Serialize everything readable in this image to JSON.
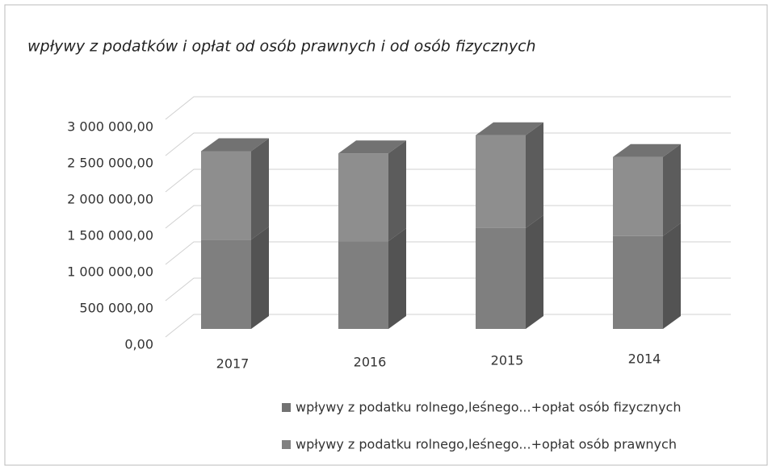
{
  "chart_data": {
    "type": "bar3d_stacked",
    "title": "wpływy z podatków i opłat od osób prawnych i od osób fizycznych",
    "categories": [
      "2017",
      "2016",
      "2015",
      "2014"
    ],
    "series": [
      {
        "name": "wpływy z podatku rolnego,leśnego...+opłat osób fizycznych",
        "color": "#7f7f7f",
        "values": [
          1230000,
          1210000,
          1390000,
          1280000
        ]
      },
      {
        "name": "wpływy z podatku rolnego,leśnego...+opłat osób prawnych",
        "color": "#8e8e8e",
        "values": [
          1220000,
          1210000,
          1280000,
          1090000
        ]
      }
    ],
    "ylim": [
      0,
      3000000
    ],
    "yticks": [
      {
        "value": 0,
        "label": "0,00"
      },
      {
        "value": 500000,
        "label": "500 000,00"
      },
      {
        "value": 1000000,
        "label": "1 000 000,00"
      },
      {
        "value": 1500000,
        "label": "1 500 000,00"
      },
      {
        "value": 2000000,
        "label": "2 000 000,00"
      },
      {
        "value": 2500000,
        "label": "2 500 000,00"
      },
      {
        "value": 3000000,
        "label": "3 000 000,00"
      }
    ],
    "grid": true
  }
}
